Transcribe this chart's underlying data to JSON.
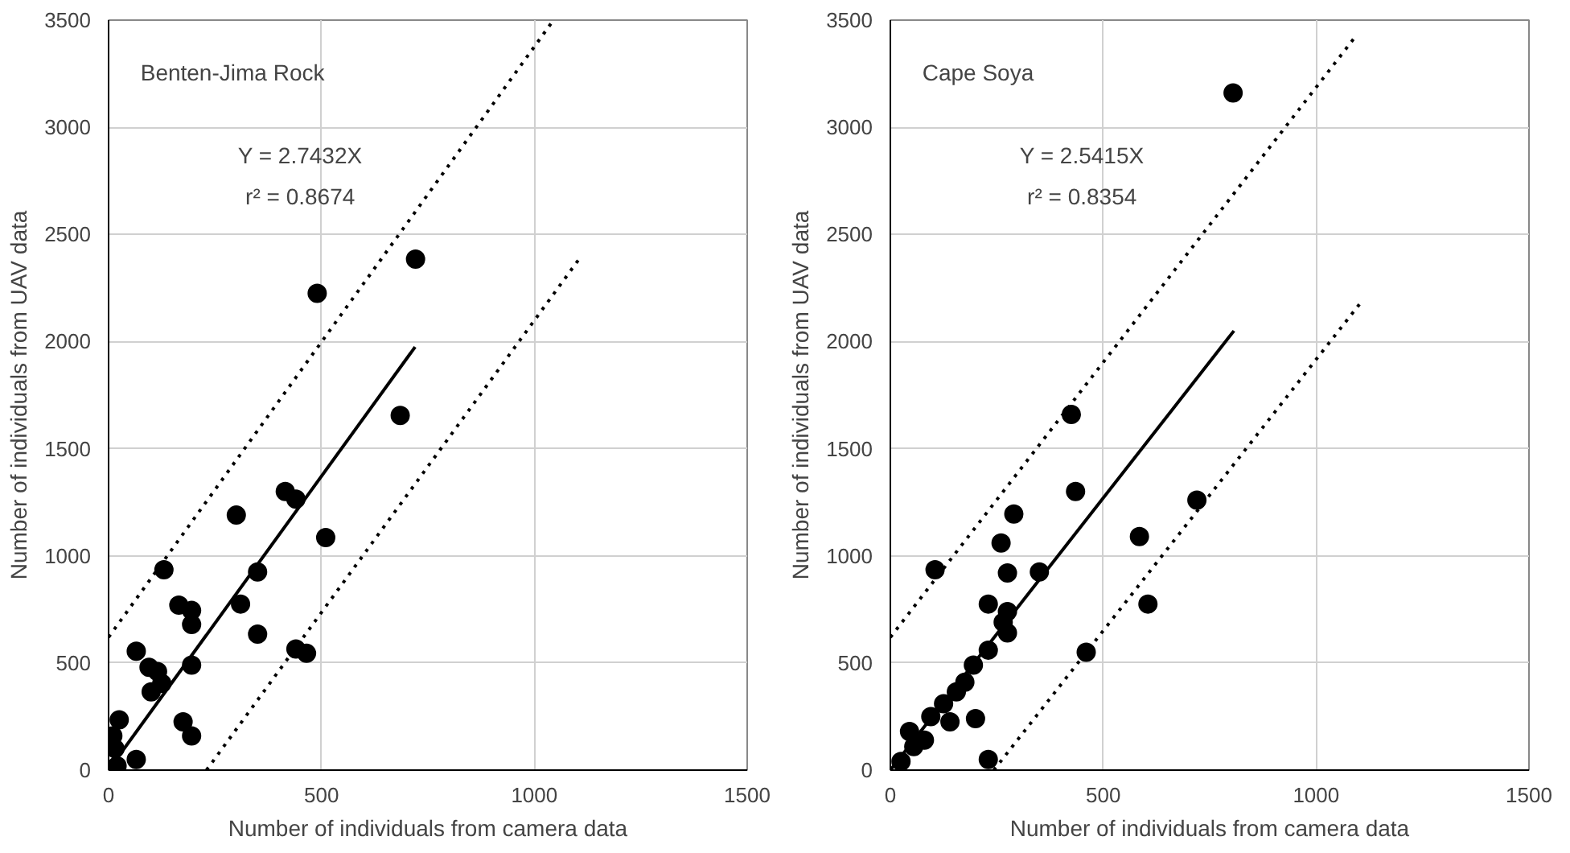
{
  "chart_data": [
    {
      "type": "scatter",
      "xlabel": "Number of individuals from camera data",
      "ylabel": "Number of individuals from UAV data",
      "xlim": [
        0,
        1500
      ],
      "ylim": [
        0,
        3500
      ],
      "xticks": [
        0,
        500,
        1000,
        1500
      ],
      "yticks": [
        0,
        500,
        1000,
        1500,
        2000,
        2500,
        3000,
        3500
      ],
      "grid": true,
      "annotations": [
        "Benten-Jima Rock",
        "Y = 2.7432X",
        "r² = 0.8674"
      ],
      "series": [
        {
          "color": "#000000",
          "marker": "circle",
          "x": [
            721,
            490,
            685,
            415,
            440,
            510,
            300,
            130,
            310,
            350,
            165,
            195,
            195,
            350,
            440,
            465,
            65,
            195,
            95,
            115,
            100,
            125,
            175,
            195,
            65,
            25,
            10,
            20,
            15
          ],
          "values": [
            2385,
            2225,
            1655,
            1300,
            1265,
            1085,
            1190,
            935,
            775,
            925,
            770,
            745,
            680,
            635,
            565,
            545,
            555,
            490,
            480,
            460,
            365,
            405,
            225,
            160,
            50,
            235,
            160,
            20,
            100
          ]
        },
        {
          "type": "line",
          "color": "#000000",
          "marker": "none",
          "line_style": "solid",
          "x": [
            0,
            720
          ],
          "values": [
            0,
            1975
          ]
        },
        {
          "type": "line",
          "color": "#000000",
          "marker": "none",
          "line_style": "dotted",
          "x": [
            0,
            1045
          ],
          "values": [
            620,
            3500
          ]
        },
        {
          "type": "line",
          "color": "#000000",
          "marker": "none",
          "line_style": "dotted",
          "x": [
            230,
            1107
          ],
          "values": [
            0,
            2390
          ]
        }
      ]
    },
    {
      "type": "scatter",
      "xlabel": "Number of individuals from camera data",
      "ylabel": "Number of individuals from UAV data",
      "xlim": [
        0,
        1500
      ],
      "ylim": [
        0,
        3500
      ],
      "xticks": [
        0,
        500,
        1000,
        1500
      ],
      "yticks": [
        0,
        500,
        1000,
        1500,
        2000,
        2500,
        3000,
        3500
      ],
      "grid": true,
      "annotations": [
        "Cape Soya",
        "Y = 2.5415X",
        "r² = 0.8354"
      ],
      "series": [
        {
          "color": "#000000",
          "marker": "circle",
          "x": [
            805,
            425,
            435,
            290,
            260,
            350,
            275,
            105,
            585,
            720,
            605,
            460,
            230,
            275,
            265,
            275,
            230,
            195,
            175,
            200,
            155,
            125,
            140,
            95,
            45,
            80,
            55,
            25,
            230
          ],
          "values": [
            3160,
            1660,
            1300,
            1195,
            1060,
            925,
            920,
            935,
            1090,
            1260,
            775,
            550,
            775,
            740,
            690,
            640,
            560,
            490,
            410,
            240,
            365,
            310,
            225,
            250,
            180,
            140,
            110,
            40,
            50
          ]
        },
        {
          "type": "line",
          "color": "#000000",
          "marker": "none",
          "line_style": "solid",
          "x": [
            0,
            807
          ],
          "values": [
            0,
            2050
          ]
        },
        {
          "type": "line",
          "color": "#000000",
          "marker": "none",
          "line_style": "dotted",
          "x": [
            0,
            1095
          ],
          "values": [
            620,
            3430
          ]
        },
        {
          "type": "line",
          "color": "#000000",
          "marker": "none",
          "line_style": "dotted",
          "x": [
            243,
            1103
          ],
          "values": [
            0,
            2177
          ]
        }
      ]
    }
  ]
}
